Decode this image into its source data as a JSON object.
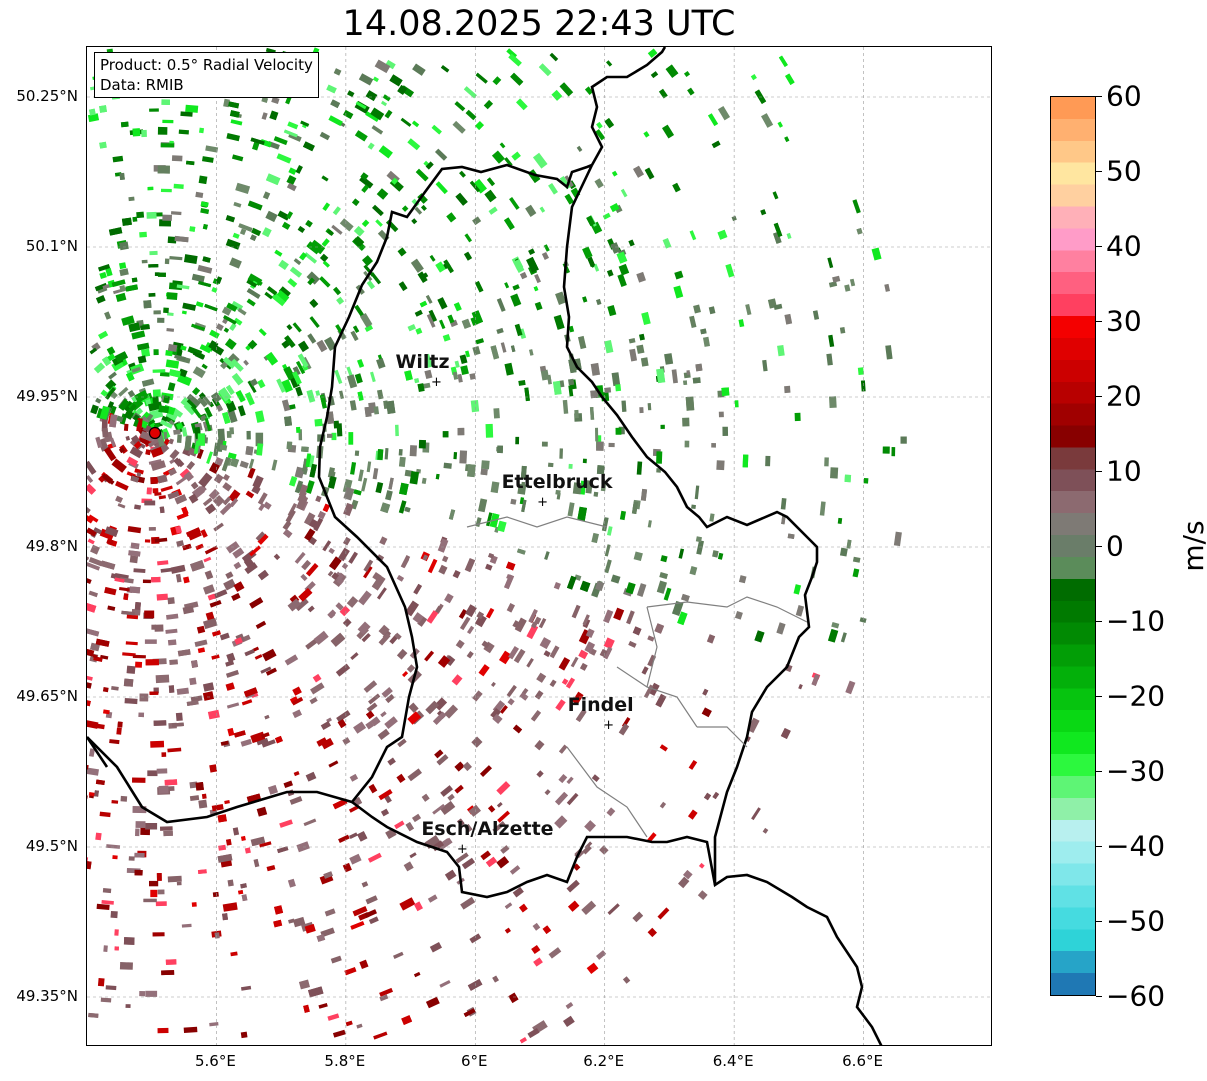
{
  "title": "14.08.2025 22:43 UTC",
  "info": {
    "product": "Product: 0.5° Radial Velocity",
    "data": "Data: RMIB"
  },
  "lat_ticks": [
    {
      "value": 50.25,
      "label": "50.25°N"
    },
    {
      "value": 50.1,
      "label": "50.1°N"
    },
    {
      "value": 49.95,
      "label": "49.95°N"
    },
    {
      "value": 49.8,
      "label": "49.8°N"
    },
    {
      "value": 49.65,
      "label": "49.65°N"
    },
    {
      "value": 49.5,
      "label": "49.5°N"
    },
    {
      "value": 49.35,
      "label": "49.35°N"
    }
  ],
  "lon_ticks": [
    {
      "value": 5.6,
      "label": "5.6°E"
    },
    {
      "value": 5.8,
      "label": "5.8°E"
    },
    {
      "value": 6.0,
      "label": "6°E"
    },
    {
      "value": 6.2,
      "label": "6.2°E"
    },
    {
      "value": 6.4,
      "label": "6.4°E"
    },
    {
      "value": 6.6,
      "label": "6.6°E"
    }
  ],
  "cities": [
    {
      "name": "Wiltz",
      "lon": 5.94,
      "lat": 49.965
    },
    {
      "name": "Ettelbruck",
      "lon": 6.104,
      "lat": 49.845
    },
    {
      "name": "Findel",
      "lon": 6.206,
      "lat": 49.622
    },
    {
      "name": "Esch/Alzette",
      "lon": 5.98,
      "lat": 49.498
    }
  ],
  "radar_site": {
    "lon": 5.505,
    "lat": 49.914
  },
  "colorbar": {
    "unit": "m/s",
    "min": -60,
    "max": 60,
    "ticks": [
      60,
      50,
      40,
      30,
      20,
      10,
      0,
      -10,
      -20,
      -30,
      -40,
      -50,
      -60
    ],
    "tick_labels": [
      "60",
      "50",
      "40",
      "30",
      "20",
      "10",
      "0",
      "−10",
      "−20",
      "−30",
      "−40",
      "−50",
      "−60"
    ],
    "colors": [
      "#1f78b4",
      "#26a4c8",
      "#2ed3d8",
      "#45dbe0",
      "#60e1e5",
      "#7fe7ea",
      "#9eedee",
      "#b8f0ef",
      "#8ff0a8",
      "#5ef575",
      "#2cf83e",
      "#10e81f",
      "#09d814",
      "#06c40f",
      "#03b00a",
      "#029e06",
      "#018a03",
      "#007a00",
      "#006c00",
      "#5b8c5a",
      "#6a7d69",
      "#7e7a75",
      "#8c6a70",
      "#7e5058",
      "#7a3a3c",
      "#880000",
      "#a00000",
      "#b80000",
      "#cc0000",
      "#e00000",
      "#f40000",
      "#ff4060",
      "#ff6080",
      "#ff80a0",
      "#ff9cc8",
      "#ffb0b8",
      "#ffd0a0",
      "#ffe6a0",
      "#ffc888",
      "#ffb070",
      "#ff9a55"
    ]
  }
}
